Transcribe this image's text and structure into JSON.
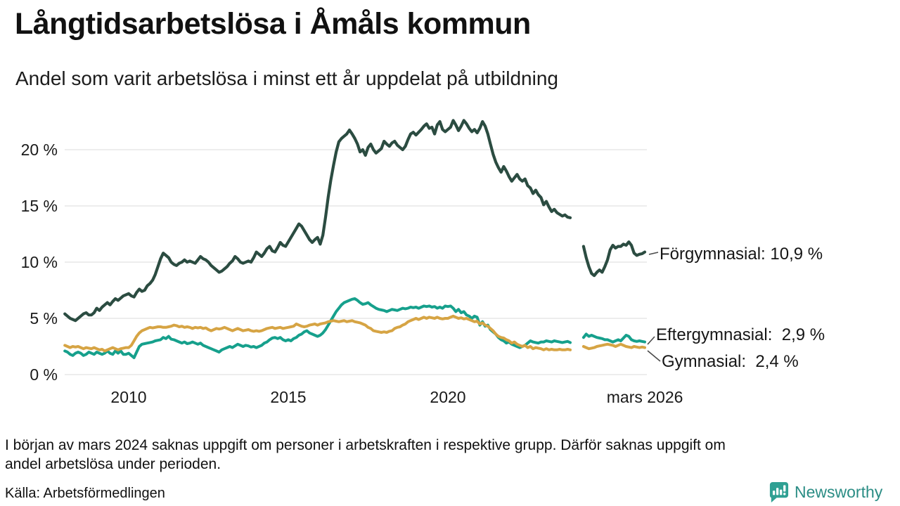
{
  "header": {
    "title": "Långtidsarbetslösa i Åmåls kommun",
    "subtitle": "Andel som varit arbetslösa i minst ett år uppdelat på utbildning"
  },
  "legend": {
    "items": [
      {
        "series": "Förgymnasial",
        "label": "Förgymnasial: 10,9 %"
      },
      {
        "series": "Eftergymnasial",
        "label": "Eftergymnasial:  2,9 %"
      },
      {
        "series": "Gymnasial",
        "label": "Gymnasial:  2,4 %"
      }
    ]
  },
  "footer": {
    "note_line1": "I början av mars 2024 saknas uppgift om personer i arbetskraften i respektive grupp. Därför saknas uppgift om",
    "note_line2": "andel arbetslösa under perioden.",
    "source": "Källa: Arbetsförmedlingen",
    "brand": "Newsworthy"
  },
  "colors": {
    "forgymnasial": "#2b4c41",
    "eftergymnasial": "#16a08c",
    "gymnasial": "#d6a444",
    "grid": "#e2e2e2",
    "connector": "#4a4a4a",
    "brand_icon": "#2fa093",
    "brand_text": "#2b8d85"
  },
  "chart_data": {
    "type": "line",
    "title": "Långtidsarbetslösa i Åmåls kommun",
    "subtitle": "Andel som varit arbetslösa i minst ett år uppdelat på utbildning",
    "unit": "%",
    "frequency": "monthly",
    "x_start": "2008-01",
    "x_end": "2026-03",
    "missing_period": "dec 2023 - mars 2024",
    "ylim": [
      0,
      23
    ],
    "grid": true,
    "legend_position": "right-end-labels",
    "y_axis": {
      "ticks": [
        {
          "value": 0,
          "label": "0 %"
        },
        {
          "value": 5,
          "label": "5 %"
        },
        {
          "value": 10,
          "label": "10 %"
        },
        {
          "value": 15,
          "label": "15 %"
        },
        {
          "value": 20,
          "label": "20 %"
        }
      ]
    },
    "x_axis": {
      "ticks": [
        {
          "t": 2010,
          "label": "2010"
        },
        {
          "t": 2015,
          "label": "2015"
        },
        {
          "t": 2020,
          "label": "2020"
        },
        {
          "t": 2026.17,
          "label": "mars 2026"
        }
      ]
    },
    "series": [
      {
        "name": "Förgymnasial",
        "color": "#2b4c41",
        "stroke_width": 4.2,
        "end_value": 10.9,
        "end_label": "Förgymnasial: 10,9 %",
        "values": [
          5.4,
          5.2,
          5.0,
          4.9,
          4.8,
          5.0,
          5.2,
          5.4,
          5.5,
          5.3,
          5.3,
          5.5,
          5.9,
          5.7,
          6.0,
          6.2,
          6.4,
          6.2,
          6.5,
          6.75,
          6.6,
          6.8,
          7.0,
          7.1,
          7.2,
          7.0,
          6.9,
          7.3,
          7.6,
          7.4,
          7.5,
          7.9,
          8.1,
          8.4,
          8.9,
          9.6,
          10.3,
          10.8,
          10.6,
          10.4,
          10.0,
          9.8,
          9.7,
          9.9,
          10.0,
          10.2,
          10.0,
          10.1,
          10.0,
          9.9,
          10.2,
          10.5,
          10.3,
          10.2,
          10.0,
          9.7,
          9.5,
          9.3,
          9.1,
          9.2,
          9.4,
          9.6,
          9.9,
          10.1,
          10.5,
          10.3,
          10.0,
          9.9,
          10.0,
          10.1,
          10.0,
          10.4,
          10.9,
          10.7,
          10.5,
          10.8,
          11.2,
          11.4,
          11.0,
          10.9,
          11.3,
          11.75,
          11.5,
          11.4,
          11.8,
          12.2,
          12.6,
          13.0,
          13.4,
          13.2,
          12.8,
          12.4,
          12.0,
          11.75,
          12.0,
          12.2,
          11.6,
          12.4,
          14.0,
          15.8,
          17.3,
          18.6,
          19.8,
          20.7,
          21.0,
          21.2,
          21.4,
          21.75,
          21.4,
          21.0,
          20.5,
          19.8,
          20.0,
          19.5,
          20.2,
          20.5,
          20.0,
          19.7,
          19.9,
          20.1,
          20.75,
          20.5,
          20.3,
          20.6,
          20.75,
          20.4,
          20.2,
          20.0,
          20.3,
          20.9,
          21.4,
          21.55,
          21.3,
          21.55,
          21.8,
          22.1,
          22.3,
          21.9,
          22.0,
          21.4,
          22.2,
          22.5,
          21.8,
          21.6,
          21.8,
          22.0,
          22.6,
          22.2,
          21.7,
          22.1,
          22.6,
          22.3,
          21.9,
          21.6,
          21.8,
          21.5,
          21.9,
          22.5,
          22.1,
          21.4,
          20.5,
          19.6,
          18.9,
          18.4,
          18.0,
          18.5,
          18.1,
          17.6,
          17.2,
          17.5,
          17.8,
          17.4,
          17.2,
          17.4,
          16.8,
          16.6,
          16.1,
          16.4,
          16.0,
          15.75,
          15.1,
          15.4,
          14.9,
          14.5,
          14.7,
          14.4,
          14.25,
          14.1,
          14.2,
          14.0,
          13.95,
          null,
          null,
          null,
          null,
          11.4,
          10.4,
          9.6,
          9.0,
          8.8,
          9.1,
          9.3,
          9.1,
          9.6,
          10.2,
          11.1,
          11.5,
          11.25,
          11.4,
          11.4,
          11.6,
          11.5,
          11.8,
          11.5,
          10.8,
          10.6,
          10.7,
          10.75,
          10.9
        ]
      },
      {
        "name": "Eftergymnasial",
        "color": "#16a08c",
        "stroke_width": 4,
        "end_value": 2.9,
        "end_label": "Eftergymnasial:  2,9 %",
        "values": [
          2.1,
          2.0,
          1.8,
          1.7,
          1.9,
          2.0,
          1.9,
          1.7,
          1.8,
          2.0,
          1.9,
          1.8,
          2.0,
          1.9,
          1.8,
          1.9,
          2.1,
          1.9,
          1.8,
          2.1,
          1.9,
          2.1,
          1.8,
          1.8,
          1.9,
          1.7,
          1.5,
          2.0,
          2.5,
          2.7,
          2.75,
          2.8,
          2.85,
          2.9,
          3.0,
          3.05,
          3.1,
          3.3,
          3.2,
          3.4,
          3.15,
          3.1,
          3.0,
          2.9,
          2.8,
          2.9,
          2.75,
          2.8,
          2.9,
          2.8,
          2.7,
          2.8,
          2.6,
          2.5,
          2.4,
          2.3,
          2.2,
          2.1,
          2.0,
          2.2,
          2.3,
          2.4,
          2.5,
          2.4,
          2.55,
          2.7,
          2.6,
          2.5,
          2.6,
          2.55,
          2.45,
          2.5,
          2.4,
          2.5,
          2.6,
          2.8,
          2.9,
          3.1,
          3.25,
          3.3,
          3.2,
          3.3,
          3.1,
          3.0,
          3.1,
          3.0,
          3.2,
          3.3,
          3.5,
          3.6,
          3.8,
          3.9,
          3.7,
          3.6,
          3.5,
          3.4,
          3.5,
          3.7,
          4.0,
          4.4,
          4.8,
          5.2,
          5.6,
          5.9,
          6.2,
          6.4,
          6.5,
          6.6,
          6.7,
          6.75,
          6.6,
          6.4,
          6.25,
          6.3,
          6.4,
          6.2,
          6.05,
          5.9,
          5.8,
          5.75,
          5.7,
          5.6,
          5.7,
          5.8,
          5.75,
          5.7,
          5.8,
          5.9,
          5.85,
          5.9,
          6.0,
          5.95,
          6.0,
          5.9,
          6.0,
          6.1,
          6.05,
          6.1,
          6.0,
          6.05,
          5.9,
          6.0,
          5.9,
          6.1,
          6.05,
          6.1,
          5.9,
          5.6,
          5.8,
          5.5,
          5.6,
          5.3,
          5.2,
          5.0,
          5.2,
          5.1,
          4.4,
          4.7,
          4.3,
          4.4,
          4.0,
          3.8,
          3.6,
          3.3,
          3.1,
          3.0,
          2.8,
          2.9,
          2.7,
          2.6,
          2.5,
          2.4,
          2.5,
          2.6,
          2.8,
          3.0,
          2.9,
          2.85,
          2.8,
          2.9,
          2.9,
          3.0,
          2.95,
          2.9,
          3.0,
          2.95,
          2.9,
          2.85,
          2.9,
          2.95,
          2.85,
          null,
          null,
          null,
          null,
          3.3,
          3.6,
          3.4,
          3.5,
          3.4,
          3.3,
          3.25,
          3.2,
          3.1,
          3.1,
          3.0,
          2.9,
          3.0,
          3.1,
          3.0,
          3.25,
          3.5,
          3.4,
          3.1,
          3.0,
          2.95,
          3.0,
          2.95,
          2.9
        ]
      },
      {
        "name": "Gymnasial",
        "color": "#d6a444",
        "stroke_width": 4,
        "end_value": 2.4,
        "end_label": "Gymnasial:  2,4 %",
        "values": [
          2.6,
          2.5,
          2.4,
          2.5,
          2.45,
          2.5,
          2.4,
          2.3,
          2.4,
          2.35,
          2.3,
          2.4,
          2.3,
          2.2,
          2.25,
          2.1,
          2.2,
          2.3,
          2.4,
          2.3,
          2.2,
          2.3,
          2.35,
          2.4,
          2.4,
          2.6,
          3.0,
          3.4,
          3.7,
          3.9,
          4.0,
          4.1,
          4.2,
          4.15,
          4.2,
          4.25,
          4.25,
          4.2,
          4.2,
          4.25,
          4.3,
          4.4,
          4.35,
          4.25,
          4.3,
          4.2,
          4.25,
          4.2,
          4.1,
          4.2,
          4.15,
          4.2,
          4.1,
          4.15,
          4.0,
          3.9,
          4.0,
          4.1,
          4.05,
          4.1,
          4.2,
          4.1,
          4.0,
          3.9,
          4.0,
          4.1,
          4.0,
          3.9,
          3.95,
          4.0,
          3.9,
          3.85,
          3.9,
          3.85,
          3.9,
          4.0,
          4.1,
          4.15,
          4.2,
          4.1,
          4.15,
          4.2,
          4.1,
          4.15,
          4.2,
          4.25,
          4.3,
          4.5,
          4.4,
          4.3,
          4.25,
          4.3,
          4.4,
          4.45,
          4.5,
          4.4,
          4.5,
          4.55,
          4.6,
          4.7,
          4.75,
          4.8,
          4.75,
          4.7,
          4.75,
          4.8,
          4.7,
          4.75,
          4.8,
          4.7,
          4.65,
          4.6,
          4.5,
          4.4,
          4.2,
          4.1,
          3.9,
          3.85,
          3.8,
          3.75,
          3.8,
          3.75,
          3.85,
          3.9,
          4.1,
          4.2,
          4.25,
          4.4,
          4.5,
          4.7,
          4.8,
          4.9,
          5.0,
          4.9,
          5.0,
          5.1,
          5.0,
          5.1,
          5.05,
          5.0,
          5.1,
          5.0,
          4.95,
          5.0,
          5.0,
          5.1,
          5.2,
          5.1,
          5.0,
          5.05,
          4.95,
          5.0,
          4.9,
          4.8,
          4.7,
          4.75,
          4.5,
          4.6,
          4.4,
          4.3,
          4.1,
          3.9,
          3.6,
          3.4,
          3.3,
          3.25,
          3.1,
          3.0,
          2.8,
          2.9,
          2.7,
          2.6,
          2.5,
          2.6,
          2.4,
          2.5,
          2.3,
          2.4,
          2.35,
          2.3,
          2.2,
          2.3,
          2.2,
          2.25,
          2.2,
          2.2,
          2.25,
          2.2,
          2.2,
          2.25,
          2.2,
          null,
          null,
          null,
          null,
          2.5,
          2.4,
          2.3,
          2.35,
          2.4,
          2.5,
          2.55,
          2.6,
          2.65,
          2.7,
          2.65,
          2.6,
          2.5,
          2.6,
          2.7,
          2.6,
          2.5,
          2.45,
          2.4,
          2.5,
          2.45,
          2.4,
          2.45,
          2.4
        ]
      }
    ]
  }
}
